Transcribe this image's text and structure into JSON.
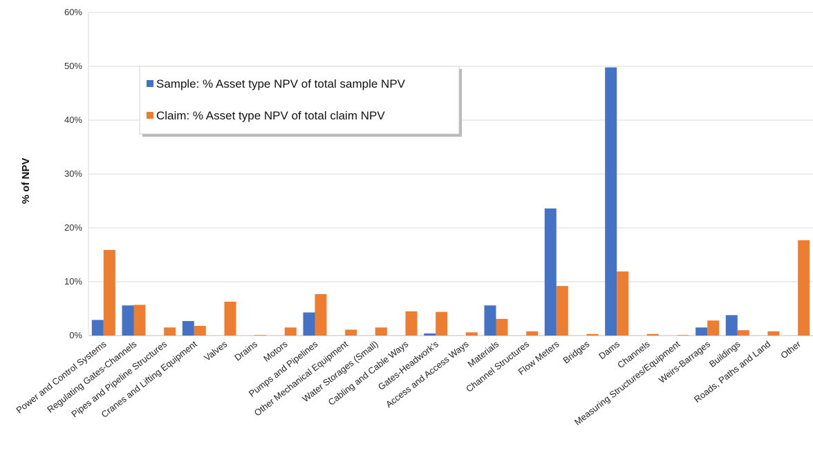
{
  "chart_data": {
    "type": "bar",
    "title": "",
    "xlabel": "",
    "ylabel": "% of NPV",
    "ylim": [
      0,
      60
    ],
    "y_ticks": [
      "0%",
      "10%",
      "20%",
      "30%",
      "40%",
      "50%",
      "60%"
    ],
    "grid": "horizontal",
    "legend_position": "top-left inside",
    "categories": [
      "Power and Control Systems",
      "Regulating Gates-Channels",
      "Pipes and Pipeline Structures",
      "Cranes and Lifting Equipment",
      "Valves",
      "Drains",
      "Motors",
      "Pumps and Pipelines",
      "Other Mechanical Equipment",
      "Water Storages (Small)",
      "Cabling and Cable Ways",
      "Gates-Headwork's",
      "Access and Access Ways",
      "Materials",
      "Channel Structures",
      "Flow Meters",
      "Bridges",
      "Dams",
      "Channels",
      "Measuring Structures/Equipment",
      "Weirs-Barrages",
      "Buildings",
      "Roads, Paths and Land",
      "Other"
    ],
    "series": [
      {
        "name": "Sample: % Asset type NPV of total sample NPV",
        "color": "#4472C4",
        "values": [
          2.9,
          5.6,
          0,
          2.7,
          0,
          0,
          0,
          4.3,
          0,
          0,
          0,
          0.4,
          0,
          5.6,
          0,
          23.6,
          0,
          49.8,
          0,
          0,
          1.5,
          3.8,
          0,
          0
        ]
      },
      {
        "name": "Claim: % Asset type NPV of total claim NPV",
        "color": "#ED7D31",
        "values": [
          15.9,
          5.7,
          1.5,
          1.8,
          6.3,
          0.1,
          1.5,
          7.7,
          1.1,
          1.5,
          4.5,
          4.4,
          0.6,
          3.1,
          0.8,
          9.2,
          0.3,
          11.9,
          0.3,
          0.1,
          2.8,
          1.0,
          0.8,
          17.7
        ]
      }
    ]
  }
}
